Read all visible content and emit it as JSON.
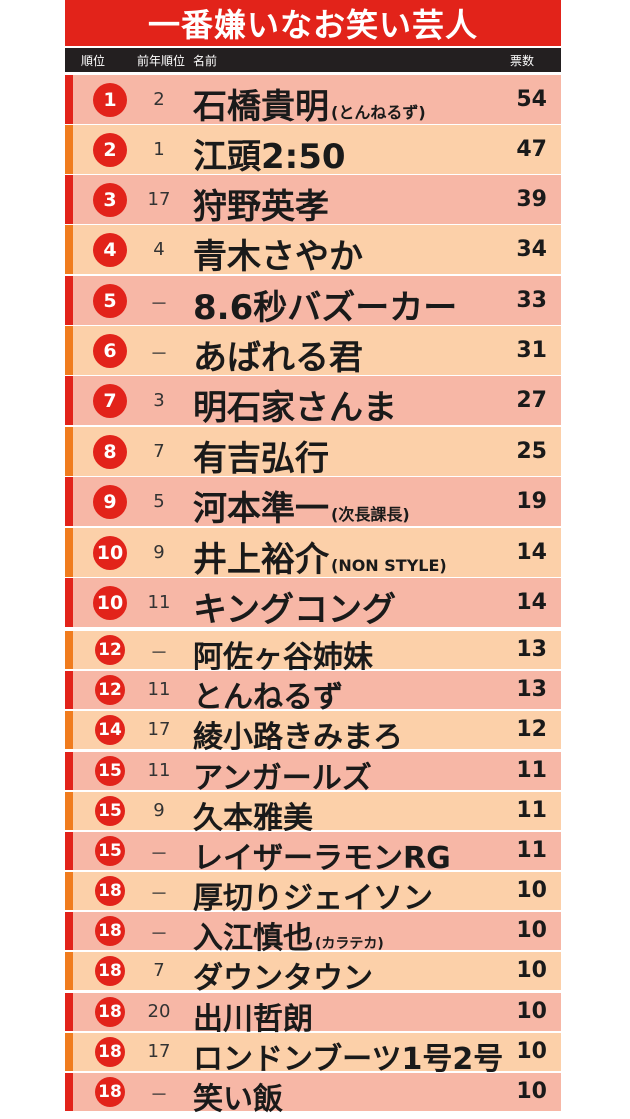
{
  "title": "一番嫌いなお笑い芸人",
  "header": {
    "rank": "順位",
    "prev_rank": "前年順位",
    "name": "名前",
    "votes": "票数"
  },
  "rows": [
    {
      "rank": "1",
      "prev": "2",
      "name": "石橋貴明",
      "sub": "(とんねるず)",
      "votes": "54"
    },
    {
      "rank": "2",
      "prev": "1",
      "name": "江頭2:50",
      "sub": "",
      "votes": "47"
    },
    {
      "rank": "3",
      "prev": "17",
      "name": "狩野英孝",
      "sub": "",
      "votes": "39"
    },
    {
      "rank": "4",
      "prev": "4",
      "name": "青木さやか",
      "sub": "",
      "votes": "34"
    },
    {
      "rank": "5",
      "prev": "－",
      "name": "8.6秒バズーカー",
      "sub": "",
      "votes": "33"
    },
    {
      "rank": "6",
      "prev": "－",
      "name": "あばれる君",
      "sub": "",
      "votes": "31"
    },
    {
      "rank": "7",
      "prev": "3",
      "name": "明石家さんま",
      "sub": "",
      "votes": "27"
    },
    {
      "rank": "8",
      "prev": "7",
      "name": "有吉弘行",
      "sub": "",
      "votes": "25"
    },
    {
      "rank": "9",
      "prev": "5",
      "name": "河本準一",
      "sub": "(次長課長)",
      "votes": "19"
    },
    {
      "rank": "10",
      "prev": "9",
      "name": "井上裕介",
      "sub": "(NON STYLE)",
      "votes": "14"
    },
    {
      "rank": "10",
      "prev": "11",
      "name": "キングコング",
      "sub": "",
      "votes": "14"
    },
    {
      "rank": "12",
      "prev": "－",
      "name": "阿佐ヶ谷姉妹",
      "sub": "",
      "votes": "13"
    },
    {
      "rank": "12",
      "prev": "11",
      "name": "とんねるず",
      "sub": "",
      "votes": "13"
    },
    {
      "rank": "14",
      "prev": "17",
      "name": "綾小路きみまろ",
      "sub": "",
      "votes": "12"
    },
    {
      "rank": "15",
      "prev": "11",
      "name": "アンガールズ",
      "sub": "",
      "votes": "11"
    },
    {
      "rank": "15",
      "prev": "9",
      "name": "久本雅美",
      "sub": "",
      "votes": "11"
    },
    {
      "rank": "15",
      "prev": "－",
      "name": "レイザーラモンRG",
      "sub": "",
      "votes": "11"
    },
    {
      "rank": "18",
      "prev": "－",
      "name": "厚切りジェイソン",
      "sub": "",
      "votes": "10"
    },
    {
      "rank": "18",
      "prev": "－",
      "name": "入江慎也",
      "sub": "(カラテカ)",
      "votes": "10"
    },
    {
      "rank": "18",
      "prev": "7",
      "name": "ダウンタウン",
      "sub": "",
      "votes": "10"
    },
    {
      "rank": "18",
      "prev": "20",
      "name": "出川哲朗",
      "sub": "",
      "votes": "10"
    },
    {
      "rank": "18",
      "prev": "17",
      "name": "ロンドンブーツ1号2号",
      "sub": "",
      "votes": "10"
    },
    {
      "rank": "18",
      "prev": "－",
      "name": "笑い飯",
      "sub": "",
      "votes": "10"
    }
  ],
  "colors": {
    "title_red": "#e2231a",
    "header_black": "#231f20",
    "row_pink": "#f7b7a6",
    "row_peach": "#fcd0a9",
    "accent_orange": "#f07c1e"
  }
}
